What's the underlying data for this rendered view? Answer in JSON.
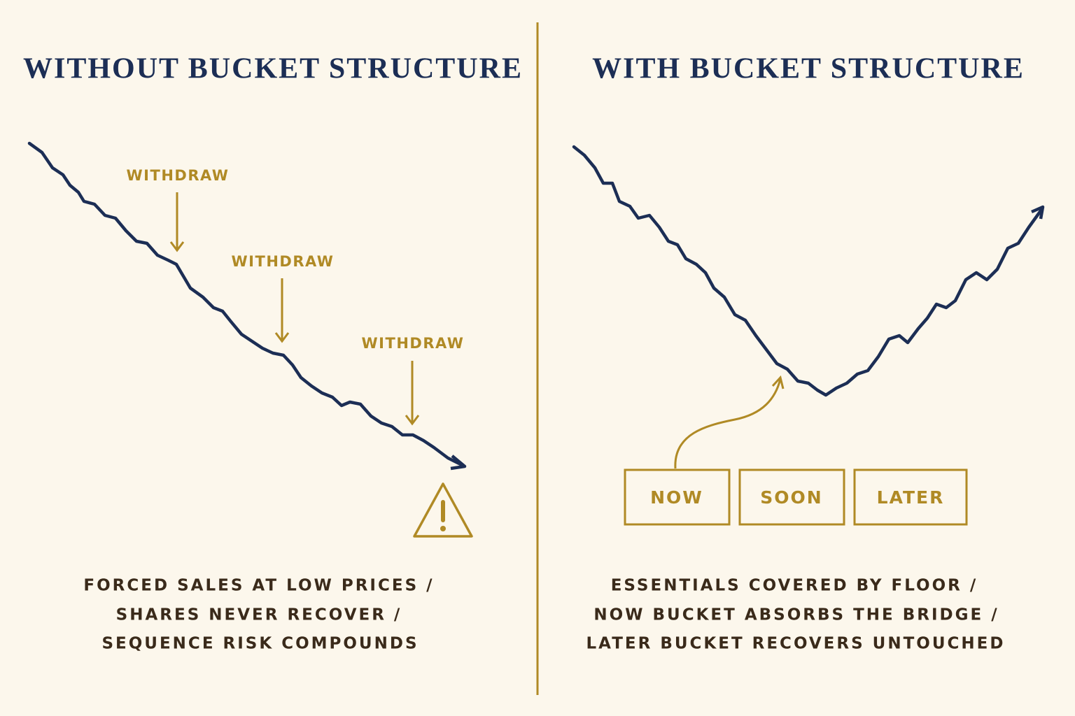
{
  "left": {
    "title": "WITHOUT BUCKET STRUCTURE",
    "markers": [
      "WITHDRAW",
      "WITHDRAW",
      "WITHDRAW"
    ],
    "caption": [
      "FORCED SALES AT LOW PRICES /",
      "SHARES NEVER RECOVER /",
      "SEQUENCE RISK COMPOUNDS"
    ]
  },
  "right": {
    "title": "WITH BUCKET STRUCTURE",
    "buckets": [
      "NOW",
      "SOON",
      "LATER"
    ],
    "caption": [
      "ESSENTIALS COVERED BY FLOOR /",
      "NOW BUCKET ABSORBS THE BRIDGE /",
      "LATER BUCKET RECOVERS UNTOUCHED"
    ]
  }
}
